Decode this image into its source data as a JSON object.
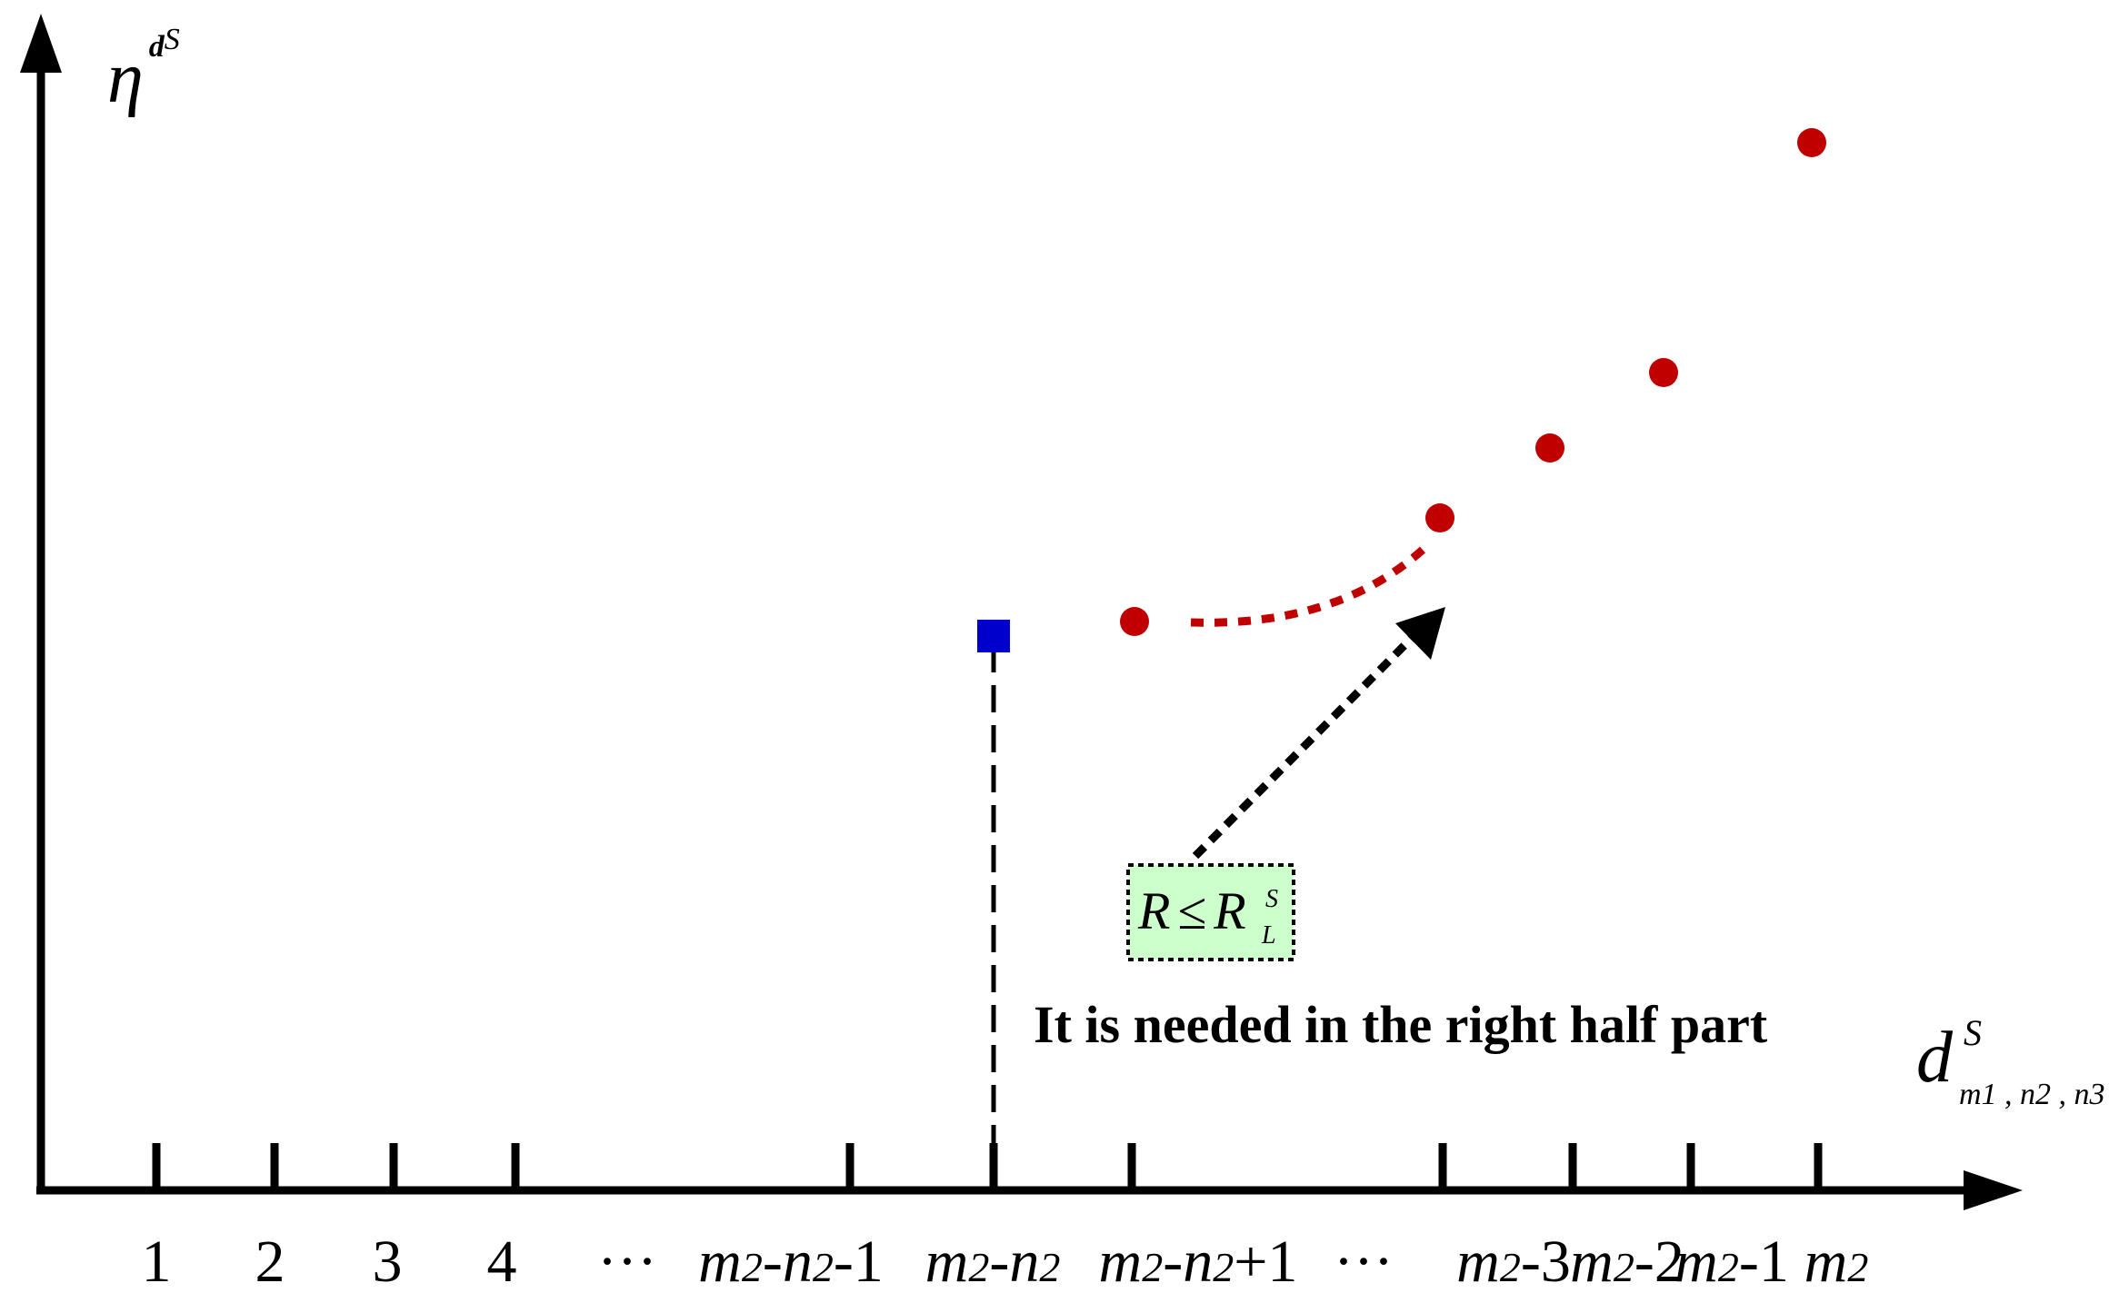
{
  "figure": {
    "y_axis_label": {
      "main": "η",
      "sup_bold": "d",
      "sup_italic": "S"
    },
    "x_axis_label": {
      "main": "d",
      "sup": "S",
      "sub": "m1 , n2 , n3"
    },
    "tick_labels": [
      {
        "parts": [
          {
            "t": "1",
            "i": false
          }
        ]
      },
      {
        "parts": [
          {
            "t": "2",
            "i": false
          }
        ]
      },
      {
        "parts": [
          {
            "t": "3",
            "i": false
          }
        ]
      },
      {
        "parts": [
          {
            "t": "4",
            "i": false
          }
        ]
      },
      {
        "parts": [
          {
            "t": "···",
            "i": false
          }
        ]
      },
      {
        "parts": [
          {
            "t": "m",
            "i": true
          },
          {
            "t": "2",
            "i": true,
            "small": true
          },
          {
            "t": "-",
            "i": true
          },
          {
            "t": "n",
            "i": true
          },
          {
            "t": "2",
            "i": true,
            "small": true
          },
          {
            "t": "-1",
            "i": false
          }
        ]
      },
      {
        "parts": [
          {
            "t": "m",
            "i": true
          },
          {
            "t": "2",
            "i": true,
            "small": true
          },
          {
            "t": "-",
            "i": true
          },
          {
            "t": "n",
            "i": true
          },
          {
            "t": "2",
            "i": true,
            "small": true
          }
        ]
      },
      {
        "parts": [
          {
            "t": "m",
            "i": true
          },
          {
            "t": "2",
            "i": true,
            "small": true
          },
          {
            "t": "-",
            "i": true
          },
          {
            "t": "n",
            "i": true
          },
          {
            "t": "2",
            "i": true,
            "small": true
          },
          {
            "t": "+1",
            "i": false
          }
        ]
      },
      {
        "parts": [
          {
            "t": "···",
            "i": false
          }
        ]
      },
      {
        "parts": [
          {
            "t": "m",
            "i": true
          },
          {
            "t": "2",
            "i": true,
            "small": true
          },
          {
            "t": "-3",
            "i": false
          }
        ]
      },
      {
        "parts": [
          {
            "t": "m",
            "i": true
          },
          {
            "t": "2",
            "i": true,
            "small": true
          },
          {
            "t": "-2",
            "i": false
          }
        ]
      },
      {
        "parts": [
          {
            "t": "m",
            "i": true
          },
          {
            "t": "2",
            "i": true,
            "small": true
          },
          {
            "t": "-1",
            "i": false
          }
        ]
      },
      {
        "parts": [
          {
            "t": "m",
            "i": true
          },
          {
            "t": "2",
            "i": true,
            "small": true
          }
        ]
      }
    ],
    "condition_box": {
      "lhs": "R",
      "op": "≤",
      "rhs": "R",
      "rhs_sup": "S",
      "rhs_sub": "L"
    },
    "annotation": "It is needed in the right half part",
    "colors": {
      "axis": "#000000",
      "points": "#c00000",
      "marker": "#0000cc",
      "box_fill": "#ccffcc"
    }
  }
}
